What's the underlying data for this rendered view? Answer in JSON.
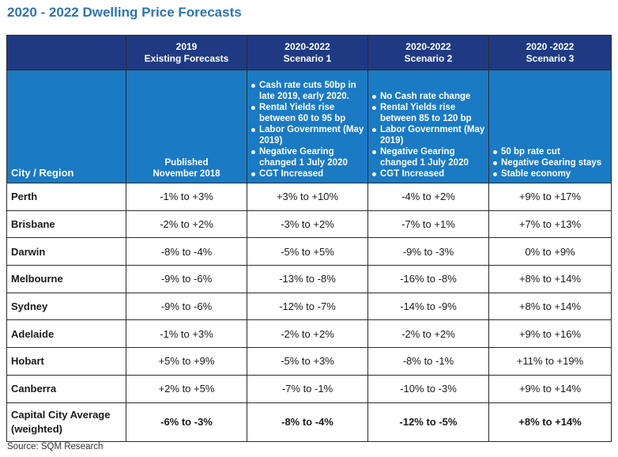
{
  "title": "2020 - 2022 Dwelling Price Forecasts",
  "columns": [
    {
      "period": "2019",
      "name": "Existing Forecasts"
    },
    {
      "period": "2020-2022",
      "name": "Scenario 1"
    },
    {
      "period": "2020-2022",
      "name": "Scenario 2"
    },
    {
      "period": "2020 -2022",
      "name": "Scenario 3"
    }
  ],
  "city_header": "City / Region",
  "existing_note": [
    "Published",
    "November 2018"
  ],
  "scenario1_assumptions": [
    "Cash rate cuts 50bp in late 2019, early 2020.",
    "Rental Yields rise between 60 to 95 bp",
    "Labor Government (May 2019)",
    "Negative Gearing changed 1 July 2020",
    "CGT Increased"
  ],
  "scenario2_assumptions": [
    "No Cash rate change",
    "Rental Yields rise between 85 to 120 bp",
    "Labor Government  (May 2019)",
    "Negative Gearing changed 1 July 2020",
    "CGT Increased"
  ],
  "scenario3_assumptions": [
    "50 bp rate cut",
    "Negative Gearing stays",
    "Stable economy"
  ],
  "rows": [
    {
      "city": "Perth",
      "values": [
        "-1% to +3%",
        "+3% to +10%",
        "-4% to +2%",
        "+9% to +17%"
      ]
    },
    {
      "city": "Brisbane",
      "values": [
        "-2% to +2%",
        "-3% to +2%",
        "-7% to +1%",
        "+7% to +13%"
      ]
    },
    {
      "city": "Darwin",
      "values": [
        "-8% to -4%",
        "-5% to +5%",
        "-9% to -3%",
        "0% to +9%"
      ]
    },
    {
      "city": "Melbourne",
      "values": [
        "-9% to -6%",
        "-13% to -8%",
        "-16% to -8%",
        "+8% to +14%"
      ]
    },
    {
      "city": "Sydney",
      "values": [
        "-9% to -6%",
        "-12% to -7%",
        "-14% to -9%",
        "+8% to +14%"
      ]
    },
    {
      "city": "Adelaide",
      "values": [
        "-1% to +3%",
        "-2% to +2%",
        "-2% to +2%",
        "+9% to +16%"
      ]
    },
    {
      "city": "Hobart",
      "values": [
        "+5% to +9%",
        "-5% to +3%",
        "-8% to -1%",
        "+11% to +19%"
      ]
    },
    {
      "city": "Canberra",
      "values": [
        "+2% to +5%",
        "-7% to -1%",
        "-10% to -3%",
        "+9% to +14%"
      ]
    }
  ],
  "average": {
    "city_line1": "Capital City Average",
    "city_line2": "(weighted)",
    "values": [
      "-6% to -3%",
      "-8% to -4%",
      "-12% to -5%",
      "+8% to +14%"
    ]
  },
  "source": "Source:  SQM Research",
  "colors": {
    "title": "#2e74b5",
    "header_dark": "#1f3a82",
    "header_light": "#1a7ac4"
  }
}
